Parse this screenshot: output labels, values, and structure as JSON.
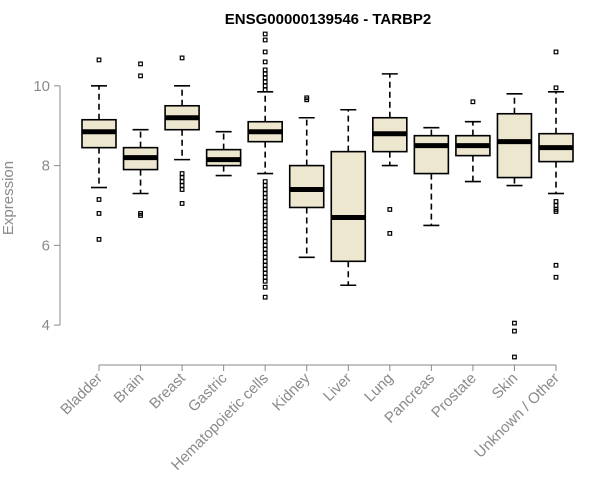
{
  "chart_data": {
    "type": "boxplot",
    "title": "ENSG00000139546 - TARBP2",
    "xlabel": "",
    "ylabel": "Expression",
    "ylim": [
      3,
      11.4
    ],
    "yticks": [
      4,
      6,
      8,
      10
    ],
    "categories": [
      "Bladder",
      "Brain",
      "Breast",
      "Gastric",
      "Hematopoietic cells",
      "Kidney",
      "Liver",
      "Lung",
      "Pancreas",
      "Prostate",
      "Skin",
      "Unknown / Other"
    ],
    "boxes": [
      {
        "name": "Bladder",
        "whisker_low": 7.45,
        "q1": 8.45,
        "median": 8.85,
        "q3": 9.15,
        "whisker_high": 10.0,
        "outliers": [
          10.65,
          7.15,
          6.8,
          6.15
        ]
      },
      {
        "name": "Brain",
        "whisker_low": 7.3,
        "q1": 7.9,
        "median": 8.2,
        "q3": 8.45,
        "whisker_high": 8.9,
        "outliers": [
          10.55,
          10.25,
          6.8,
          6.75
        ]
      },
      {
        "name": "Breast",
        "whisker_low": 8.15,
        "q1": 8.9,
        "median": 9.2,
        "q3": 9.5,
        "whisker_high": 10.0,
        "outliers": [
          10.7,
          7.8,
          7.7,
          7.6,
          7.5,
          7.4,
          7.05
        ]
      },
      {
        "name": "Gastric",
        "whisker_low": 7.75,
        "q1": 8.0,
        "median": 8.15,
        "q3": 8.4,
        "whisker_high": 8.85,
        "outliers": []
      },
      {
        "name": "Hematopoietic cells",
        "whisker_low": 7.8,
        "q1": 8.6,
        "median": 8.85,
        "q3": 9.1,
        "whisker_high": 9.85,
        "outliers": [
          11.3,
          11.15,
          10.85,
          10.6,
          10.4,
          10.3,
          10.2,
          10.1,
          10.0,
          9.9,
          7.6,
          7.5,
          7.4,
          7.3,
          7.2,
          7.1,
          7.0,
          6.9,
          6.8,
          6.7,
          6.6,
          6.5,
          6.4,
          6.3,
          6.2,
          6.1,
          6.0,
          5.9,
          5.8,
          5.7,
          5.6,
          5.5,
          5.4,
          5.3,
          5.2,
          5.1,
          4.95,
          4.7
        ]
      },
      {
        "name": "Kidney",
        "whisker_low": 5.7,
        "q1": 6.95,
        "median": 7.4,
        "q3": 8.0,
        "whisker_high": 9.2,
        "outliers": [
          9.7,
          9.65
        ]
      },
      {
        "name": "Liver",
        "whisker_low": 5.0,
        "q1": 5.6,
        "median": 6.7,
        "q3": 8.35,
        "whisker_high": 9.4,
        "outliers": []
      },
      {
        "name": "Lung",
        "whisker_low": 8.0,
        "q1": 8.35,
        "median": 8.8,
        "q3": 9.2,
        "whisker_high": 10.3,
        "outliers": [
          6.9,
          6.3
        ]
      },
      {
        "name": "Pancreas",
        "whisker_low": 6.5,
        "q1": 7.8,
        "median": 8.5,
        "q3": 8.75,
        "whisker_high": 8.95,
        "outliers": []
      },
      {
        "name": "Prostate",
        "whisker_low": 7.6,
        "q1": 8.25,
        "median": 8.5,
        "q3": 8.75,
        "whisker_high": 9.1,
        "outliers": [
          9.6
        ]
      },
      {
        "name": "Skin",
        "whisker_low": 7.5,
        "q1": 7.7,
        "median": 8.6,
        "q3": 9.3,
        "whisker_high": 9.8,
        "outliers": [
          4.05,
          3.85,
          3.2
        ]
      },
      {
        "name": "Unknown / Other",
        "whisker_low": 7.3,
        "q1": 8.1,
        "median": 8.45,
        "q3": 8.8,
        "whisker_high": 9.85,
        "outliers": [
          10.85,
          9.95,
          7.1,
          7.0,
          6.9,
          6.85,
          5.5,
          5.2
        ]
      }
    ],
    "colors": {
      "box_fill": "#ede7d0",
      "box_stroke": "#000000",
      "axis": "#8a8a8a",
      "title": "#000000"
    },
    "grid": false,
    "legend": "none"
  }
}
